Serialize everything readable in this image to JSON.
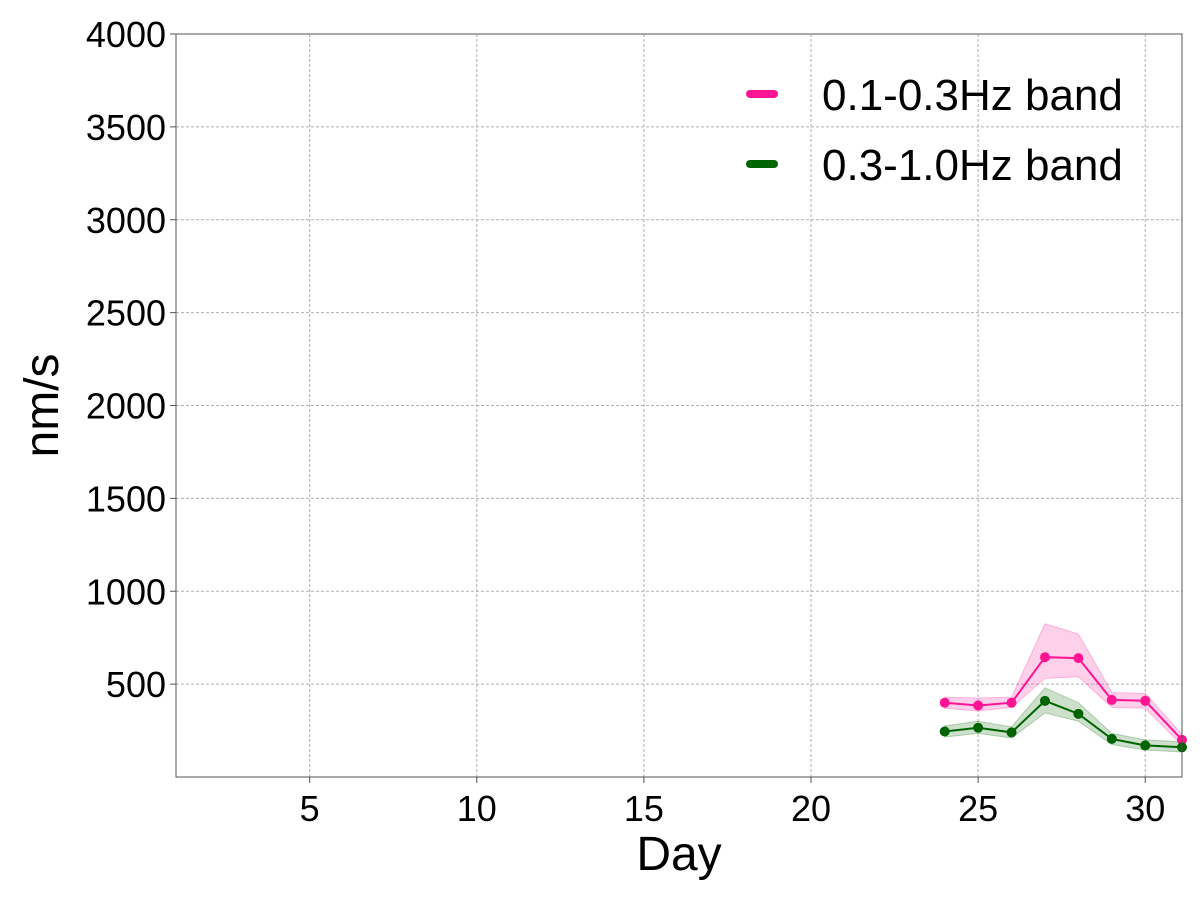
{
  "chart_data": {
    "type": "line",
    "xlabel": "Day",
    "ylabel": "nm/s",
    "xlim": [
      1,
      31.1
    ],
    "ylim": [
      0,
      4000
    ],
    "xticks": [
      5,
      10,
      15,
      20,
      25,
      30
    ],
    "yticks": [
      500,
      1000,
      1500,
      2000,
      2500,
      3000,
      3500,
      4000
    ],
    "grid": true,
    "legend_position": "top-right",
    "series": [
      {
        "name": "0.1-0.3Hz band",
        "color": "#ff1493",
        "x": [
          24,
          25,
          26,
          27,
          28,
          29,
          30,
          31.1
        ],
        "y": [
          400,
          385,
          400,
          645,
          640,
          415,
          410,
          200
        ],
        "lower": [
          370,
          355,
          375,
          530,
          540,
          375,
          370,
          170
        ],
        "upper": [
          430,
          425,
          430,
          825,
          770,
          455,
          450,
          230
        ]
      },
      {
        "name": "0.3-1.0Hz band",
        "color": "#006400",
        "x": [
          24,
          25,
          26,
          27,
          28,
          29,
          30,
          31.1
        ],
        "y": [
          245,
          265,
          240,
          410,
          340,
          205,
          170,
          160
        ],
        "lower": [
          215,
          235,
          210,
          345,
          300,
          175,
          145,
          135
        ],
        "upper": [
          275,
          300,
          270,
          480,
          400,
          235,
          200,
          190
        ]
      }
    ]
  }
}
